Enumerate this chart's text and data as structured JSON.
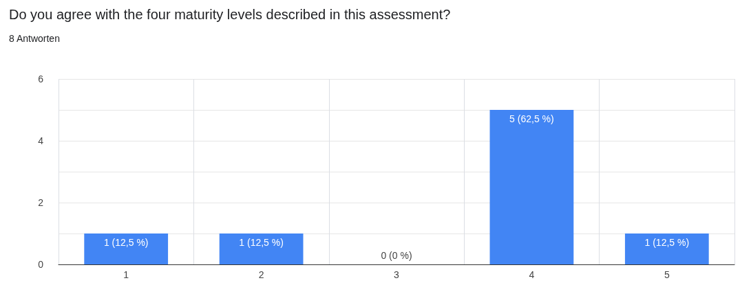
{
  "chart_data": {
    "type": "bar",
    "title": "Do you agree with the four maturity levels described in this assessment?",
    "subtitle": "8 Antworten",
    "categories": [
      "1",
      "2",
      "3",
      "4",
      "5"
    ],
    "values": [
      1,
      1,
      0,
      5,
      1
    ],
    "value_labels": [
      "1 (12,5 %)",
      "1 (12,5 %)",
      "0 (0 %)",
      "5 (62,5 %)",
      "1 (12,5 %)"
    ],
    "color": "#4285f4",
    "ylim": [
      0,
      6
    ],
    "yticks": [
      0,
      {
        "value": 1,
        "label": null
      },
      2,
      {
        "value": 3,
        "label": null
      },
      4,
      {
        "value": 5,
        "label": null
      },
      6
    ],
    "grid": true
  }
}
